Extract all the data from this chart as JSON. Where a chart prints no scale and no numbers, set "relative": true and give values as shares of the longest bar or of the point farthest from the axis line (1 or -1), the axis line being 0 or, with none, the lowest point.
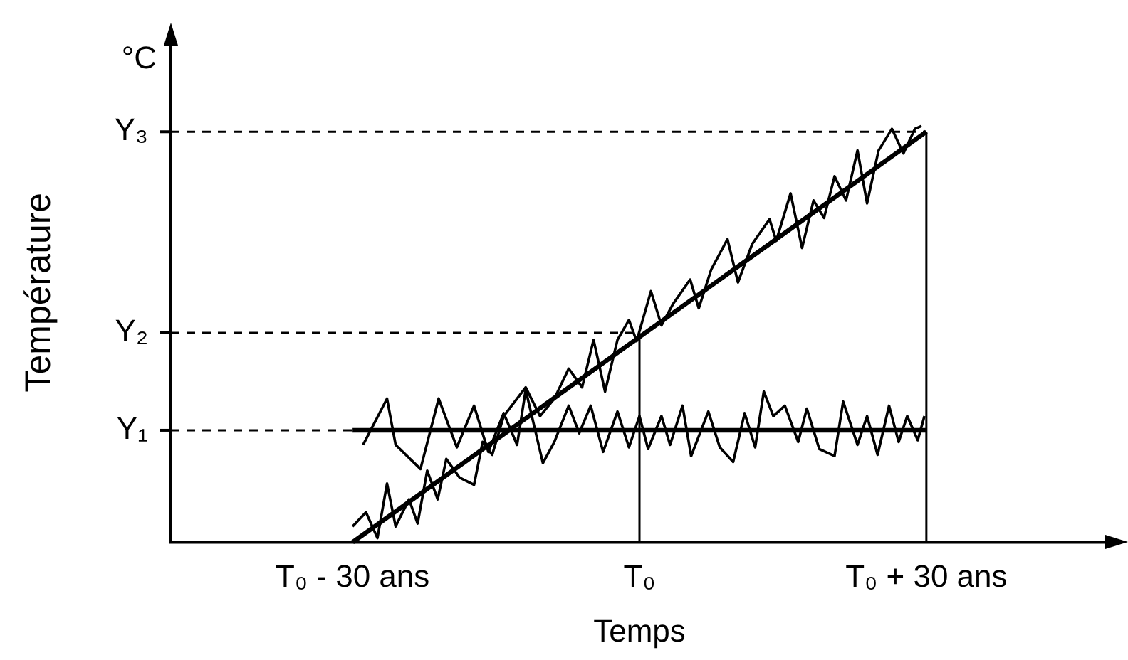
{
  "chart_data": {
    "type": "line",
    "relative": true,
    "xlabel": "Temps",
    "ylabel": "Température",
    "legend": false,
    "grid": false,
    "marker": "none",
    "xlim": [
      -49,
      49
    ],
    "xticks": [
      {
        "value": -30,
        "label": "T₀ - 30 ans"
      },
      {
        "value": 0,
        "label": "T₀"
      },
      {
        "value": 30,
        "label": "T₀ + 30 ans"
      }
    ],
    "annotations": [
      "°C"
    ],
    "ref_lines": [
      {
        "axis": "y",
        "value": 0.269,
        "label": "Y₁",
        "line_style": "dashed"
      },
      {
        "axis": "y",
        "value": 0.503,
        "label": "Y₂",
        "line_style": "dashed"
      },
      {
        "axis": "y",
        "value": 0.986,
        "label": "Y₃",
        "line_style": "dashed"
      }
    ],
    "series": [
      {
        "color": "#000000",
        "x": [
          -28.9,
          -26.4,
          -25.5,
          -22.9,
          -21.0,
          -19.1,
          -17.3,
          -15.8,
          -14.2,
          -12.8,
          -11.9,
          -10.1,
          -8.9,
          -7.4,
          -6.3,
          -5.1,
          -3.8,
          -2.3,
          -1.1,
          0,
          0.9,
          2.3,
          3.2,
          4.5,
          5.4,
          7.2,
          8.4,
          9.8,
          11.0,
          12.1,
          13.0,
          14.0,
          15.2,
          16.6,
          17.5,
          18.8,
          20.4,
          21.3,
          22.8,
          23.8,
          24.9,
          26.1,
          27.1,
          28.0,
          29.1,
          29.8
        ],
        "values": [
          0.234,
          0.345,
          0.234,
          0.176,
          0.345,
          0.228,
          0.328,
          0.217,
          0.31,
          0.234,
          0.366,
          0.19,
          0.241,
          0.328,
          0.262,
          0.328,
          0.217,
          0.314,
          0.228,
          0.303,
          0.224,
          0.303,
          0.234,
          0.328,
          0.207,
          0.314,
          0.228,
          0.193,
          0.31,
          0.228,
          0.362,
          0.303,
          0.328,
          0.241,
          0.321,
          0.224,
          0.207,
          0.338,
          0.234,
          0.303,
          0.21,
          0.328,
          0.241,
          0.303,
          0.245,
          0.303
        ]
      },
      {
        "color": "#000000",
        "x": [
          -30.0,
          -28.6,
          -27.4,
          -26.4,
          -25.5,
          -24.1,
          -23.2,
          -22.2,
          -21.1,
          -20.2,
          -18.8,
          -17.3,
          -16.4,
          -15.4,
          -14.2,
          -11.9,
          -10.4,
          -8.9,
          -7.4,
          -6.0,
          -4.8,
          -3.6,
          -2.3,
          -1.1,
          -0.3,
          1.2,
          2.3,
          3.5,
          5.3,
          6.2,
          7.5,
          9.2,
          10.3,
          11.8,
          13.6,
          14.3,
          15.8,
          17.0,
          18.2,
          19.3,
          20.4,
          21.6,
          22.8,
          23.8,
          25.0,
          26.4,
          27.6,
          28.8,
          29.5
        ],
        "values": [
          0.038,
          0.072,
          0.01,
          0.141,
          0.038,
          0.103,
          0.045,
          0.172,
          0.103,
          0.2,
          0.155,
          0.138,
          0.241,
          0.21,
          0.303,
          0.372,
          0.303,
          0.345,
          0.417,
          0.372,
          0.486,
          0.362,
          0.486,
          0.534,
          0.483,
          0.603,
          0.521,
          0.572,
          0.631,
          0.562,
          0.655,
          0.728,
          0.624,
          0.717,
          0.776,
          0.724,
          0.838,
          0.707,
          0.821,
          0.779,
          0.879,
          0.821,
          0.941,
          0.814,
          0.941,
          0.993,
          0.934,
          0.993,
          1
        ]
      },
      {
        "color": "#000000",
        "x": [
          -30,
          30
        ],
        "values": [
          0.269,
          0.269
        ]
      },
      {
        "color": "#000000",
        "x": [
          -30,
          30
        ],
        "values": [
          0,
          0.986
        ]
      },
      {
        "color": "#000000",
        "x": [
          0,
          0
        ],
        "values": [
          0,
          0.503
        ]
      },
      {
        "color": "#000000",
        "x": [
          30,
          30
        ],
        "values": [
          0,
          0.986
        ]
      }
    ]
  }
}
